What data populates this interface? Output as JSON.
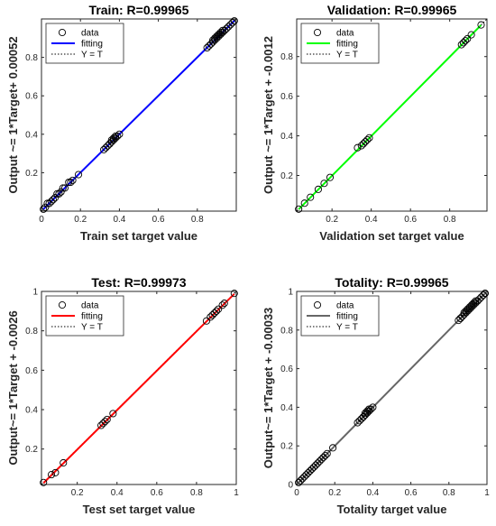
{
  "chart_data": [
    {
      "type": "scatter",
      "title": "Train: R=0.99965",
      "xlabel": "Train set target value",
      "ylabel": "Output ~= 1*Target+ 0.00052",
      "xlim": [
        0,
        1
      ],
      "ylim": [
        0,
        1
      ],
      "xticks": [
        "0",
        "0.2",
        "0.4",
        "0.6",
        "0.8"
      ],
      "yticks": [
        "0.2",
        "0.4",
        "0.6",
        "0.8"
      ],
      "fit_color": "#0000ff",
      "fit": {
        "slope": 1,
        "intercept": 0.00052
      },
      "legend": {
        "position": "top-left",
        "entries": [
          "data",
          "fitting",
          "Y = T"
        ]
      },
      "series": [
        {
          "name": "data",
          "x": [
            0.01,
            0.02,
            0.03,
            0.04,
            0.05,
            0.06,
            0.07,
            0.08,
            0.09,
            0.1,
            0.11,
            0.12,
            0.14,
            0.15,
            0.16,
            0.19,
            0.32,
            0.33,
            0.34,
            0.35,
            0.35,
            0.36,
            0.36,
            0.37,
            0.37,
            0.38,
            0.38,
            0.39,
            0.4,
            0.85,
            0.86,
            0.87,
            0.88,
            0.88,
            0.89,
            0.89,
            0.9,
            0.9,
            0.91,
            0.91,
            0.92,
            0.92,
            0.93,
            0.93,
            0.94,
            0.95,
            0.96,
            0.97,
            0.98,
            0.99
          ],
          "y": [
            0.01,
            0.02,
            0.04,
            0.04,
            0.05,
            0.06,
            0.07,
            0.09,
            0.09,
            0.1,
            0.12,
            0.12,
            0.15,
            0.15,
            0.16,
            0.19,
            0.32,
            0.33,
            0.34,
            0.35,
            0.35,
            0.36,
            0.37,
            0.37,
            0.38,
            0.38,
            0.39,
            0.39,
            0.4,
            0.85,
            0.86,
            0.87,
            0.88,
            0.89,
            0.89,
            0.9,
            0.9,
            0.91,
            0.91,
            0.92,
            0.92,
            0.93,
            0.93,
            0.94,
            0.94,
            0.95,
            0.96,
            0.97,
            0.98,
            0.99
          ]
        }
      ]
    },
    {
      "type": "scatter",
      "title": "Validation: R=0.99965",
      "xlabel": "Validation set target value",
      "ylabel": "Output ~= 1*Target + -0.0012",
      "xlim": [
        0.02,
        0.99
      ],
      "ylim": [
        0.02,
        0.99
      ],
      "xticks": [
        "0.2",
        "0.4",
        "0.6",
        "0.8"
      ],
      "yticks": [
        "0.2",
        "0.4",
        "0.6",
        "0.8"
      ],
      "fit_color": "#00ff00",
      "fit": {
        "slope": 1,
        "intercept": -0.0012
      },
      "legend": {
        "position": "top-left",
        "entries": [
          "data",
          "fitting",
          "Y = T"
        ]
      },
      "series": [
        {
          "name": "data",
          "x": [
            0.03,
            0.06,
            0.09,
            0.13,
            0.16,
            0.19,
            0.33,
            0.35,
            0.36,
            0.37,
            0.38,
            0.39,
            0.86,
            0.87,
            0.88,
            0.89,
            0.91,
            0.96
          ],
          "y": [
            0.03,
            0.06,
            0.09,
            0.13,
            0.16,
            0.19,
            0.34,
            0.35,
            0.36,
            0.37,
            0.38,
            0.39,
            0.86,
            0.87,
            0.88,
            0.89,
            0.91,
            0.96
          ]
        }
      ]
    },
    {
      "type": "scatter",
      "title": "Test: R=0.99973",
      "xlabel": "Test set target value",
      "ylabel": "Output~= 1*Target + -0.0026",
      "xlim": [
        0.02,
        1
      ],
      "ylim": [
        0.02,
        1
      ],
      "xticks": [
        "0.2",
        "0.4",
        "0.6",
        "0.8",
        "1"
      ],
      "yticks": [
        "0.2",
        "0.4",
        "0.6",
        "0.8",
        "1"
      ],
      "fit_color": "#ff0000",
      "fit": {
        "slope": 1,
        "intercept": -0.0026
      },
      "legend": {
        "position": "top-left",
        "entries": [
          "data",
          "fitting",
          "Y = T"
        ]
      },
      "series": [
        {
          "name": "data",
          "x": [
            0.03,
            0.07,
            0.09,
            0.13,
            0.32,
            0.33,
            0.34,
            0.35,
            0.38,
            0.85,
            0.87,
            0.88,
            0.89,
            0.9,
            0.91,
            0.93,
            0.94,
            0.99
          ],
          "y": [
            0.03,
            0.07,
            0.08,
            0.13,
            0.32,
            0.33,
            0.34,
            0.35,
            0.38,
            0.85,
            0.87,
            0.88,
            0.89,
            0.9,
            0.91,
            0.93,
            0.94,
            0.99
          ]
        }
      ]
    },
    {
      "type": "scatter",
      "title": "Totality: R=0.99965",
      "xlabel": "Totality target value",
      "ylabel": "Output~= 1*Target + -0.00033",
      "xlim": [
        0,
        1
      ],
      "ylim": [
        0,
        1
      ],
      "xticks": [
        "0",
        "0.2",
        "0.4",
        "0.6",
        "0.8",
        "1"
      ],
      "yticks": [
        "0",
        "0.2",
        "0.4",
        "0.6",
        "0.8",
        "1"
      ],
      "fit_color": "#666666",
      "fit": {
        "slope": 1,
        "intercept": -0.00033
      },
      "legend": {
        "position": "top-left",
        "entries": [
          "data",
          "fitting",
          "Y = T"
        ]
      },
      "series": [
        {
          "name": "data",
          "x": [
            0.01,
            0.02,
            0.03,
            0.04,
            0.05,
            0.06,
            0.07,
            0.08,
            0.09,
            0.1,
            0.11,
            0.12,
            0.13,
            0.14,
            0.15,
            0.16,
            0.19,
            0.32,
            0.33,
            0.34,
            0.35,
            0.35,
            0.36,
            0.36,
            0.37,
            0.37,
            0.38,
            0.38,
            0.39,
            0.4,
            0.85,
            0.86,
            0.86,
            0.87,
            0.88,
            0.88,
            0.89,
            0.89,
            0.9,
            0.9,
            0.91,
            0.91,
            0.92,
            0.92,
            0.93,
            0.93,
            0.94,
            0.94,
            0.95,
            0.96,
            0.97,
            0.98,
            0.99,
            0.99
          ],
          "y": [
            0.01,
            0.02,
            0.03,
            0.04,
            0.05,
            0.06,
            0.07,
            0.08,
            0.09,
            0.1,
            0.11,
            0.12,
            0.13,
            0.14,
            0.15,
            0.16,
            0.19,
            0.32,
            0.33,
            0.34,
            0.35,
            0.35,
            0.36,
            0.37,
            0.37,
            0.38,
            0.38,
            0.39,
            0.39,
            0.4,
            0.85,
            0.86,
            0.86,
            0.87,
            0.88,
            0.89,
            0.89,
            0.9,
            0.9,
            0.91,
            0.91,
            0.92,
            0.92,
            0.93,
            0.93,
            0.94,
            0.94,
            0.95,
            0.95,
            0.96,
            0.97,
            0.98,
            0.99,
            0.99
          ]
        }
      ]
    }
  ]
}
